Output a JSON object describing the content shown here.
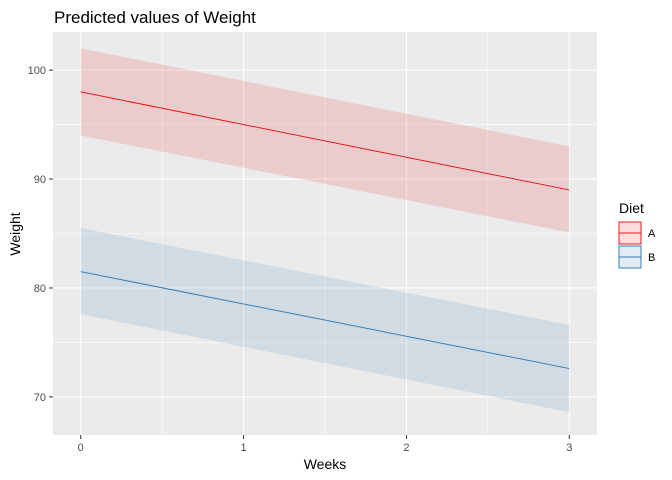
{
  "chart_data": {
    "type": "line",
    "title": "Predicted values of Weight",
    "xlabel": "Weeks",
    "ylabel": "Weight",
    "xlim": [
      -0.17,
      3.17
    ],
    "ylim": [
      66.5,
      103.5
    ],
    "x_ticks": [
      0,
      1,
      2,
      3
    ],
    "y_ticks": [
      70,
      80,
      90,
      100
    ],
    "grid": true,
    "legend": {
      "title": "Diet",
      "position": "right"
    },
    "x": [
      0,
      3
    ],
    "series": [
      {
        "name": "A",
        "color": "#e41a1c",
        "values": [
          98.0,
          89.0
        ],
        "lower": [
          94.0,
          85.1
        ],
        "upper": [
          102.0,
          93.0
        ]
      },
      {
        "name": "B",
        "color": "#377eb8",
        "values": [
          81.5,
          72.6
        ],
        "lower": [
          77.6,
          68.6
        ],
        "upper": [
          85.5,
          76.6
        ]
      }
    ]
  }
}
